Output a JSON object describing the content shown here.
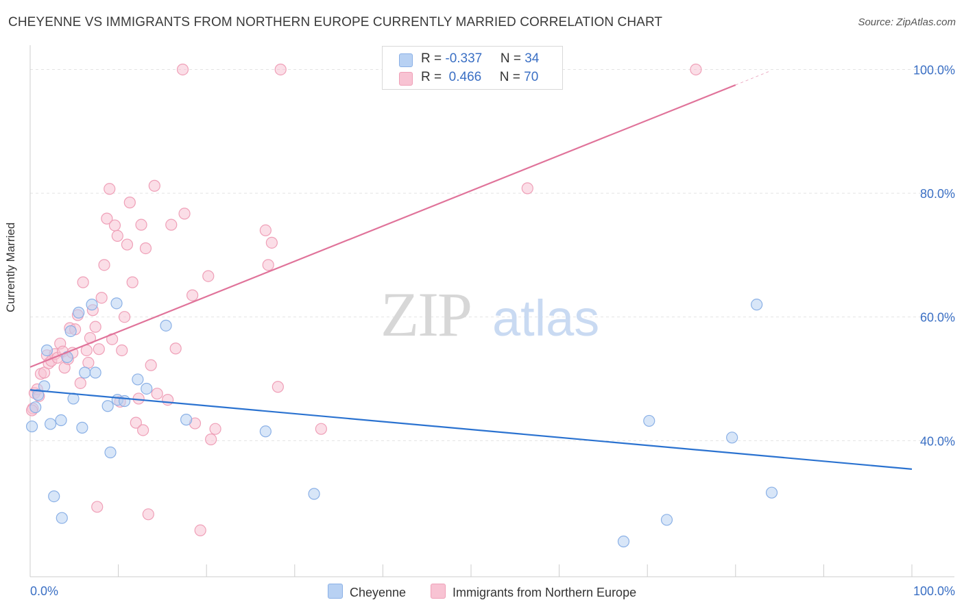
{
  "title": "CHEYENNE VS IMMIGRANTS FROM NORTHERN EUROPE CURRENTLY MARRIED CORRELATION CHART",
  "source": "Source: ZipAtlas.com",
  "watermark": {
    "zip": "ZIP",
    "atlas": "atlas"
  },
  "stats": {
    "blue": {
      "r_label": "R = ",
      "r_value": "-0.337",
      "n_label": "N = ",
      "n_value": "34"
    },
    "pink": {
      "r_label": "R = ",
      "r_value": " 0.466",
      "n_label": "N = ",
      "n_value": "70"
    }
  },
  "colors": {
    "blue_fill": "#b8d1f3",
    "blue_stroke": "#8ab0e6",
    "blue_line": "#2a72d0",
    "pink_fill": "#f8c3d3",
    "pink_stroke": "#ef9fb7",
    "pink_line": "#e0739a",
    "tick_label": "#3a6fc4",
    "grid": "#e3e3e3"
  },
  "chart_data": {
    "type": "scatter",
    "ylabel": "Currently Married",
    "xlim": [
      0,
      100
    ],
    "ylim": [
      18.0,
      102.6
    ],
    "x_tick_labels": [
      "0.0%",
      "100.0%"
    ],
    "y_ticks": [
      40,
      60,
      80,
      100
    ],
    "y_tick_labels": [
      "40.0%",
      "60.0%",
      "80.0%",
      "100.0%"
    ],
    "legend_position": "bottom-center",
    "series": [
      {
        "name": "Cheyenne",
        "color": "blue",
        "trend": {
          "x": [
            0,
            100
          ],
          "y": [
            48.2,
            35.4
          ]
        },
        "points": [
          [
            0.2,
            42.3
          ],
          [
            0.6,
            45.4
          ],
          [
            0.9,
            47.4
          ],
          [
            1.6,
            48.8
          ],
          [
            1.9,
            54.6
          ],
          [
            2.3,
            42.7
          ],
          [
            2.7,
            31.0
          ],
          [
            3.5,
            43.3
          ],
          [
            3.6,
            27.5
          ],
          [
            4.2,
            53.5
          ],
          [
            4.6,
            57.7
          ],
          [
            4.9,
            46.8
          ],
          [
            5.5,
            60.7
          ],
          [
            5.9,
            42.1
          ],
          [
            6.2,
            51.0
          ],
          [
            7.0,
            62.0
          ],
          [
            7.4,
            51.0
          ],
          [
            8.8,
            45.6
          ],
          [
            9.1,
            38.1
          ],
          [
            9.8,
            62.2
          ],
          [
            9.9,
            46.6
          ],
          [
            10.7,
            46.4
          ],
          [
            12.2,
            49.9
          ],
          [
            13.2,
            48.4
          ],
          [
            15.4,
            58.6
          ],
          [
            17.7,
            43.4
          ],
          [
            26.7,
            41.5
          ],
          [
            32.2,
            31.4
          ],
          [
            67.3,
            23.7
          ],
          [
            70.2,
            43.2
          ],
          [
            72.2,
            27.2
          ],
          [
            79.6,
            40.5
          ],
          [
            82.4,
            62.0
          ],
          [
            84.1,
            31.6
          ]
        ]
      },
      {
        "name": "Immigrants from Northern Europe",
        "color": "pink",
        "trend": {
          "x": [
            0,
            80
          ],
          "y": [
            51.9,
            97.5
          ]
        },
        "trend_ext": {
          "x": [
            80,
            84
          ],
          "y": [
            97.5,
            99.8
          ]
        },
        "points": [
          [
            0.3,
            45.2
          ],
          [
            0.5,
            47.7
          ],
          [
            0.8,
            48.3
          ],
          [
            1.2,
            50.8
          ],
          [
            1.6,
            51.0
          ],
          [
            1.9,
            53.8
          ],
          [
            2.1,
            52.5
          ],
          [
            2.4,
            52.9
          ],
          [
            2.8,
            54.0
          ],
          [
            3.1,
            53.4
          ],
          [
            3.4,
            55.7
          ],
          [
            3.7,
            54.4
          ],
          [
            3.9,
            51.8
          ],
          [
            4.3,
            53.2
          ],
          [
            4.5,
            58.2
          ],
          [
            4.8,
            54.2
          ],
          [
            5.1,
            58.0
          ],
          [
            5.4,
            60.3
          ],
          [
            5.7,
            49.3
          ],
          [
            6.0,
            65.6
          ],
          [
            6.4,
            54.6
          ],
          [
            6.6,
            52.6
          ],
          [
            6.8,
            56.6
          ],
          [
            7.1,
            61.1
          ],
          [
            7.4,
            58.4
          ],
          [
            7.6,
            29.3
          ],
          [
            7.8,
            54.8
          ],
          [
            8.1,
            63.1
          ],
          [
            8.4,
            68.4
          ],
          [
            8.7,
            75.9
          ],
          [
            9.0,
            80.7
          ],
          [
            9.3,
            56.4
          ],
          [
            9.6,
            74.8
          ],
          [
            9.9,
            73.1
          ],
          [
            10.2,
            46.3
          ],
          [
            10.4,
            54.6
          ],
          [
            10.7,
            60.0
          ],
          [
            11.0,
            71.7
          ],
          [
            11.3,
            78.5
          ],
          [
            11.6,
            65.6
          ],
          [
            12.0,
            42.9
          ],
          [
            12.3,
            46.8
          ],
          [
            12.6,
            74.9
          ],
          [
            12.8,
            41.7
          ],
          [
            13.1,
            71.1
          ],
          [
            13.4,
            28.1
          ],
          [
            13.7,
            52.2
          ],
          [
            14.1,
            81.2
          ],
          [
            14.4,
            47.6
          ],
          [
            15.6,
            46.6
          ],
          [
            16.0,
            74.9
          ],
          [
            16.5,
            54.9
          ],
          [
            17.5,
            76.7
          ],
          [
            18.4,
            63.5
          ],
          [
            18.7,
            42.8
          ],
          [
            19.3,
            25.5
          ],
          [
            20.2,
            66.6
          ],
          [
            20.5,
            40.2
          ],
          [
            21.0,
            41.9
          ],
          [
            17.3,
            100.0
          ],
          [
            26.7,
            74.0
          ],
          [
            27.0,
            68.4
          ],
          [
            27.4,
            72.0
          ],
          [
            28.1,
            48.7
          ],
          [
            28.4,
            100.0
          ],
          [
            33.0,
            41.9
          ],
          [
            56.4,
            80.8
          ],
          [
            75.5,
            100.0
          ],
          [
            0.2,
            44.9
          ],
          [
            1.0,
            47.2
          ]
        ]
      }
    ]
  }
}
